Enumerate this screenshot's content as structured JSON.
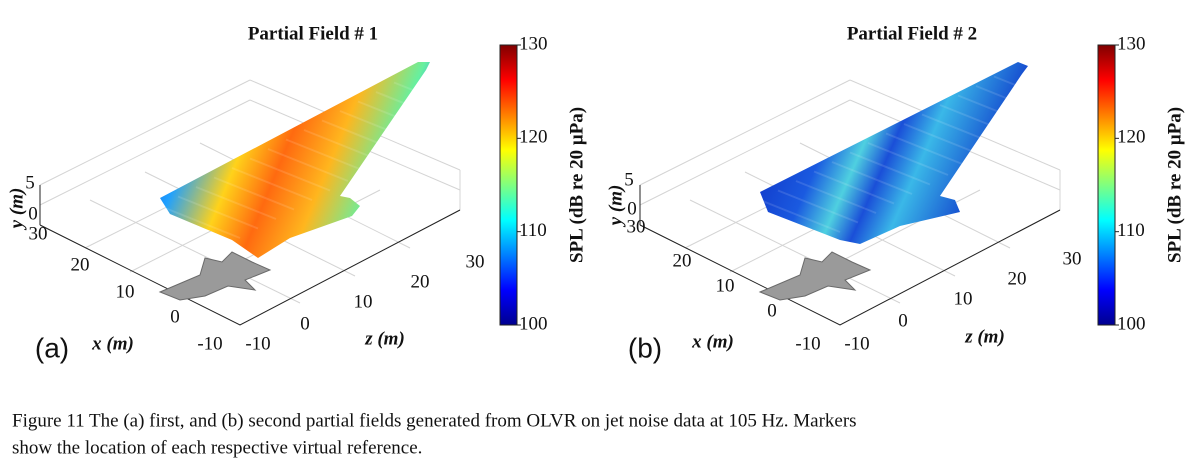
{
  "panels": [
    {
      "title": "Partial Field # 1",
      "tag": "(a)",
      "colorbar_label": "SPL (dB re 20 μPa)",
      "colorbar_ticks": [
        100,
        110,
        120,
        130
      ],
      "x_label": "x (m)",
      "y_label": "y (m)",
      "z_label": "z (m)",
      "x_ticks": [
        "-10",
        "0",
        "10",
        "20",
        "30"
      ],
      "y_ticks": [
        "0",
        "5"
      ],
      "z_ticks": [
        "-10",
        "0",
        "10",
        "20",
        "30"
      ]
    },
    {
      "title": "Partial Field # 2",
      "tag": "(b)",
      "colorbar_label": "SPL (dB re 20 μPa)",
      "colorbar_ticks": [
        100,
        110,
        120,
        130
      ],
      "x_label": "x (m)",
      "y_label": "y (m)",
      "z_label": "z (m)",
      "x_ticks": [
        "-10",
        "0",
        "10",
        "20",
        "30"
      ],
      "y_ticks": [
        "0",
        "5"
      ],
      "z_ticks": [
        "-10",
        "0",
        "10",
        "20",
        "30"
      ]
    }
  ],
  "caption": [
    "Figure 11  The (a) first, and (b) second partial fields generated from OLVR on jet noise data at 105 Hz.  Markers",
    "show the location of each respective virtual reference."
  ]
}
